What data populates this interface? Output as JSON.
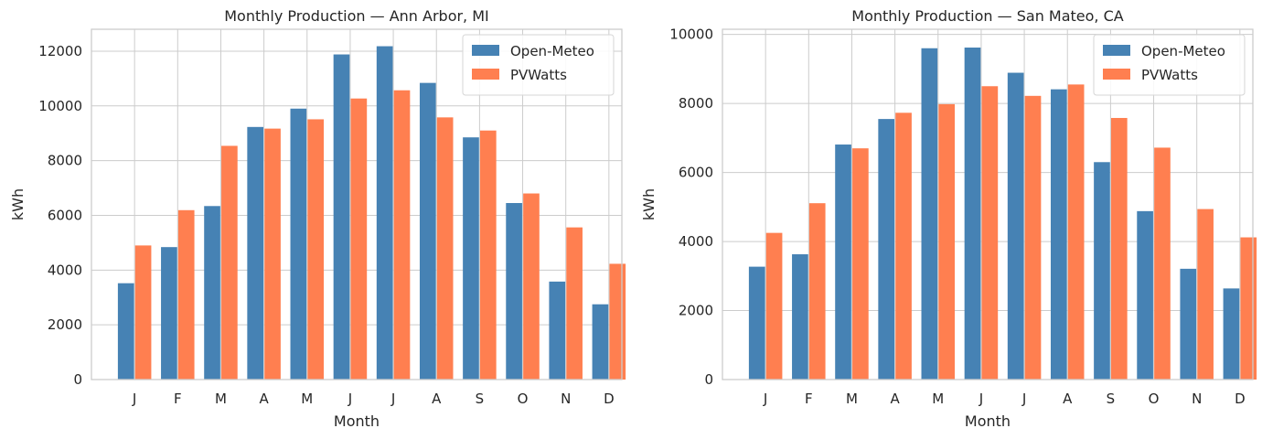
{
  "colors": {
    "open_meteo": "#4682b4",
    "pvwatts": "#ff7f50"
  },
  "chart_data": [
    {
      "type": "bar",
      "title": "Monthly Production — Ann Arbor, MI",
      "xlabel": "Month",
      "ylabel": "kWh",
      "categories": [
        "J",
        "F",
        "M",
        "A",
        "M",
        "J",
        "J",
        "A",
        "S",
        "O",
        "N",
        "D"
      ],
      "ylim": [
        0,
        12800
      ],
      "yticks": [
        0,
        2000,
        4000,
        6000,
        8000,
        10000,
        12000
      ],
      "grid": true,
      "legend": "top-right",
      "series": [
        {
          "name": "Open-Meteo",
          "color": "#4682b4",
          "values": [
            3520,
            4840,
            6340,
            9230,
            9900,
            11880,
            12180,
            10840,
            8850,
            6450,
            3580,
            2750
          ]
        },
        {
          "name": "PVWatts",
          "color": "#ff7f50",
          "values": [
            4900,
            6190,
            8540,
            9170,
            9510,
            10270,
            10570,
            9580,
            9100,
            6800,
            5560,
            4230
          ]
        }
      ]
    },
    {
      "type": "bar",
      "title": "Monthly Production — San Mateo, CA",
      "xlabel": "Month",
      "ylabel": "kWh",
      "categories": [
        "J",
        "F",
        "M",
        "A",
        "M",
        "J",
        "J",
        "A",
        "S",
        "O",
        "N",
        "D"
      ],
      "ylim": [
        0,
        10150
      ],
      "yticks": [
        0,
        2000,
        4000,
        6000,
        8000,
        10000
      ],
      "grid": true,
      "legend": "top-right",
      "series": [
        {
          "name": "Open-Meteo",
          "color": "#4682b4",
          "values": [
            3270,
            3630,
            6810,
            7550,
            9600,
            9620,
            8890,
            8410,
            6300,
            4880,
            3210,
            2640
          ]
        },
        {
          "name": "PVWatts",
          "color": "#ff7f50",
          "values": [
            4250,
            5110,
            6700,
            7730,
            7980,
            8500,
            8220,
            8550,
            7580,
            6720,
            4940,
            4120
          ]
        }
      ]
    }
  ]
}
